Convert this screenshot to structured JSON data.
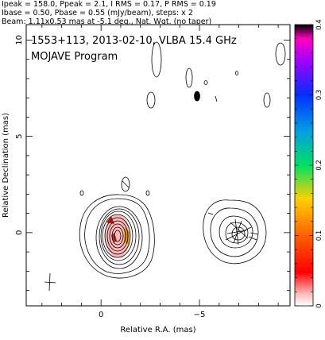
{
  "header": {
    "line1": "Ipeak = 158.0, Ppeak = 2.1, I RMS = 0.17, P RMS = 0.19",
    "line2": "Ibase = 0.50, Pbase = 0.55 (mJy/beam), steps: x 2",
    "line3": "Beam: 1.11x0.53 mas at -5.1 deg., Nat. Wgt. (no taper)"
  },
  "plot": {
    "title_line1": "1553+113, 2013-02-10, VLBA 15.4 GHz",
    "title_line2": "MOJAVE Program"
  },
  "chart_data": {
    "type": "contour",
    "xlabel": "Relative R.A. (mas)",
    "ylabel": "Relative Declination (mas)",
    "xlim": [
      3.8,
      -9.6
    ],
    "ylim": [
      -3.8,
      10.8
    ],
    "x_ticks": [
      "0",
      "−5"
    ],
    "y_ticks": [
      "0",
      "5",
      "10"
    ],
    "x_tick_values": [
      0,
      -5
    ],
    "y_tick_values": [
      0,
      5,
      10
    ],
    "core": {
      "x": 0,
      "y": 0,
      "peak_mJy_per_beam": 158.0
    },
    "jet_component": {
      "x": -6.0,
      "y": 0.1
    },
    "colorbar": {
      "label_values": [
        "0",
        "0.1",
        "0.2",
        "0.3",
        "0.4"
      ],
      "min": 0,
      "max": 0.4
    }
  }
}
